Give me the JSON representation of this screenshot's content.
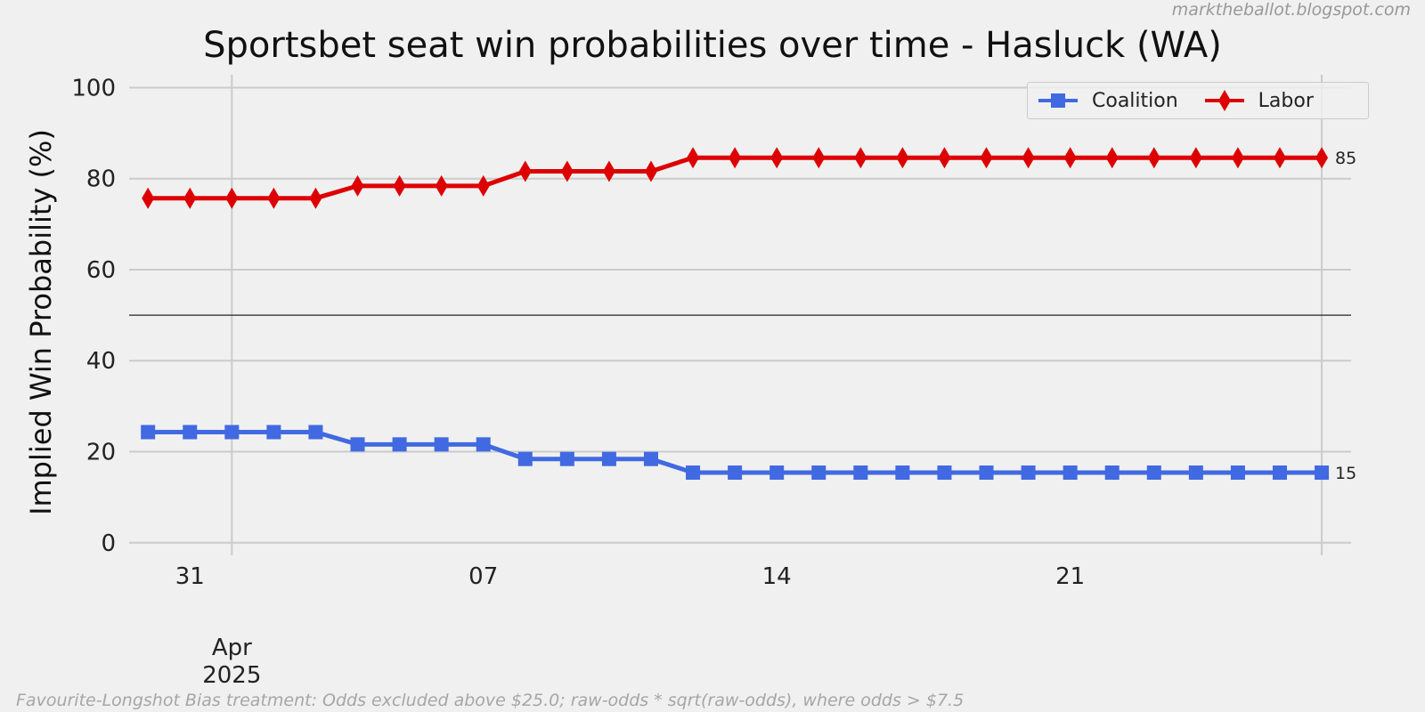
{
  "watermark": "marktheballot.blogspot.com",
  "footnote": "Favourite-Longshot Bias treatment: Odds excluded above $25.0; raw-odds * sqrt(raw-odds), where odds > $7.5",
  "chart_data": {
    "type": "line",
    "title": "Sportsbet seat win probabilities over time - Hasluck (WA)",
    "xlabel": "",
    "ylabel": "Implied Win Probability (%)",
    "ylim": [
      -2,
      104
    ],
    "yticks": [
      0,
      20,
      40,
      60,
      80,
      100
    ],
    "xlim": [
      "2025-03-29T13:12",
      "2025-04-27T16:48"
    ],
    "xticks": [
      {
        "date": "2025-03-31",
        "label": "31"
      },
      {
        "date": "2025-04-07",
        "label": "07"
      },
      {
        "date": "2025-04-14",
        "label": "14"
      },
      {
        "date": "2025-04-21",
        "label": "21"
      }
    ],
    "month_label": {
      "date": "2025-04-01",
      "month": "Apr",
      "year": "2025"
    },
    "reference_line": 50,
    "grid": true,
    "legend_position": "top-right",
    "x": [
      "2025-03-30",
      "2025-03-31",
      "2025-04-01",
      "2025-04-02",
      "2025-04-03",
      "2025-04-04",
      "2025-04-05",
      "2025-04-06",
      "2025-04-07",
      "2025-04-08",
      "2025-04-09",
      "2025-04-10",
      "2025-04-11",
      "2025-04-12",
      "2025-04-13",
      "2025-04-14",
      "2025-04-15",
      "2025-04-16",
      "2025-04-17",
      "2025-04-18",
      "2025-04-19",
      "2025-04-20",
      "2025-04-21",
      "2025-04-22",
      "2025-04-23",
      "2025-04-24",
      "2025-04-25",
      "2025-04-26",
      "2025-04-27"
    ],
    "series": [
      {
        "name": "Coalition",
        "color": "#4169e1",
        "marker": "square",
        "values": [
          24.3,
          24.3,
          24.3,
          24.3,
          24.3,
          21.6,
          21.6,
          21.6,
          21.6,
          18.4,
          18.4,
          18.4,
          18.4,
          15.4,
          15.4,
          15.4,
          15.4,
          15.4,
          15.4,
          15.4,
          15.4,
          15.4,
          15.4,
          15.4,
          15.4,
          15.4,
          15.4,
          15.4,
          15.4
        ],
        "end_label": "15"
      },
      {
        "name": "Labor",
        "color": "#dd0000",
        "marker": "diamond",
        "values": [
          75.7,
          75.7,
          75.7,
          75.7,
          75.7,
          78.4,
          78.4,
          78.4,
          78.4,
          81.6,
          81.6,
          81.6,
          81.6,
          84.6,
          84.6,
          84.6,
          84.6,
          84.6,
          84.6,
          84.6,
          84.6,
          84.6,
          84.6,
          84.6,
          84.6,
          84.6,
          84.6,
          84.6,
          84.6
        ],
        "end_label": "85"
      }
    ]
  }
}
